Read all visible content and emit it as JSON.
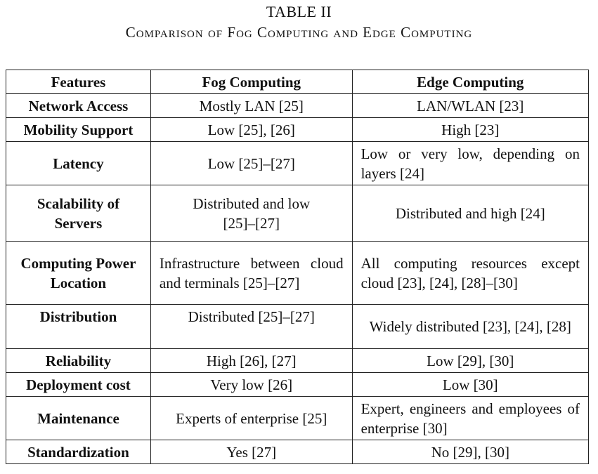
{
  "caption": {
    "label": "TABLE II",
    "title": "Comparison of Fog Computing and Edge Computing"
  },
  "table": {
    "headers": [
      "Features",
      "Fog Computing",
      "Edge Computing"
    ],
    "rows": [
      {
        "feature": "Network Access",
        "fog": "Mostly LAN [25]",
        "edge": "LAN/WLAN [23]"
      },
      {
        "feature": "Mobility Support",
        "fog": "Low [25], [26]",
        "edge": "High [23]"
      },
      {
        "feature": "Latency",
        "fog": "Low [25]–[27]",
        "edge": "Low or very low, depending on layers [24]"
      },
      {
        "feature": "Scalability of Servers",
        "fog": "Distributed and low [25]–[27]",
        "edge": "Distributed and high [24]"
      },
      {
        "feature": "Computing Power Location",
        "fog": "Infrastructure between cloud and terminals [25]–[27]",
        "edge": "All computing resources except cloud [23], [24], [28]–[30]"
      },
      {
        "feature": "Distribution",
        "fog": "Distributed [25]–[27]",
        "edge": "Widely distributed [23], [24], [28]"
      },
      {
        "feature": "Reliability",
        "fog": "High [26], [27]",
        "edge": "Low [29], [30]"
      },
      {
        "feature": "Deployment cost",
        "fog": "Very low [26]",
        "edge": "Low [30]"
      },
      {
        "feature": "Maintenance",
        "fog": "Experts of enterprise [25]",
        "edge": "Expert, engineers and employees of enterprise [30]"
      },
      {
        "feature": "Standardization",
        "fog": "Yes [27]",
        "edge": "No [29], [30]"
      }
    ]
  }
}
